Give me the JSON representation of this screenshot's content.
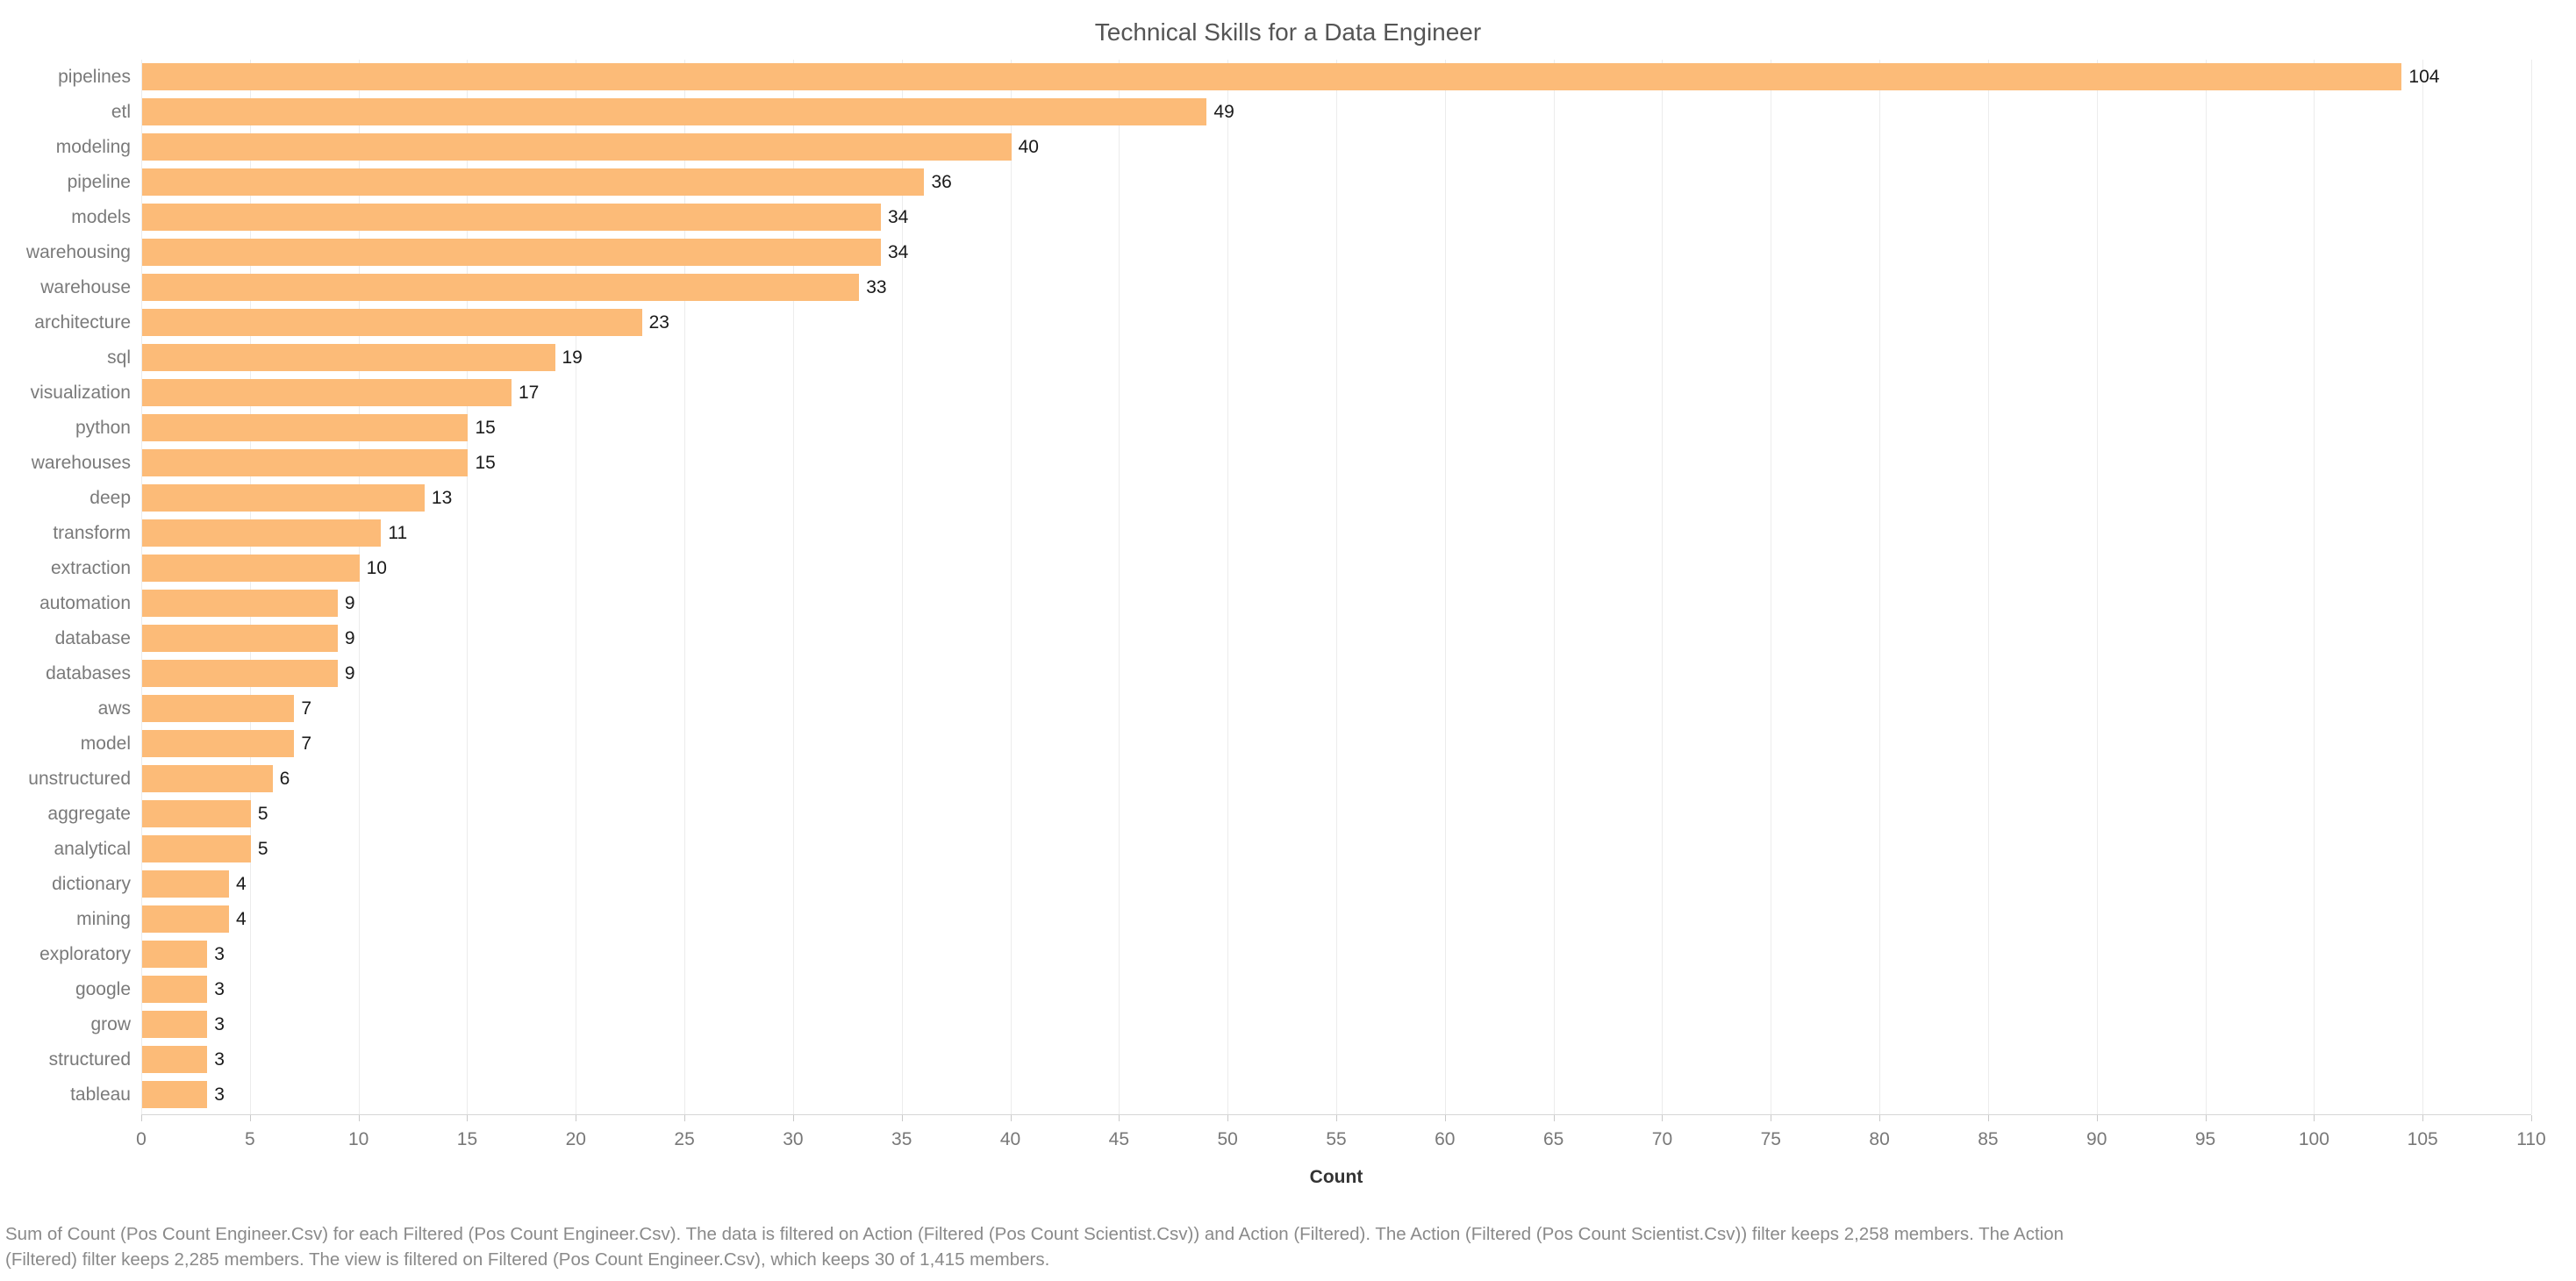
{
  "chart_data": {
    "type": "bar",
    "orientation": "horizontal",
    "title": "Technical Skills for a Data Engineer",
    "xlabel": "Count",
    "xlim": [
      0,
      110
    ],
    "xticks": [
      0,
      5,
      10,
      15,
      20,
      25,
      30,
      35,
      40,
      45,
      50,
      55,
      60,
      65,
      70,
      75,
      80,
      85,
      90,
      95,
      100,
      105,
      110
    ],
    "grid": true,
    "legend": "none",
    "value_labels": true,
    "bar_color": "#FCBB78",
    "categories": [
      "pipelines",
      "etl",
      "modeling",
      "pipeline",
      "models",
      "warehousing",
      "warehouse",
      "architecture",
      "sql",
      "visualization",
      "python",
      "warehouses",
      "deep",
      "transform",
      "extraction",
      "automation",
      "database",
      "databases",
      "aws",
      "model",
      "unstructured",
      "aggregate",
      "analytical",
      "dictionary",
      "mining",
      "exploratory",
      "google",
      "grow",
      "structured",
      "tableau"
    ],
    "values": [
      104,
      49,
      40,
      36,
      34,
      34,
      33,
      23,
      19,
      17,
      15,
      15,
      13,
      11,
      10,
      9,
      9,
      9,
      7,
      7,
      6,
      5,
      5,
      4,
      4,
      3,
      3,
      3,
      3,
      3
    ]
  },
  "caption": {
    "lines": [
      "Sum of Count (Pos Count Engineer.Csv) for each Filtered (Pos Count Engineer.Csv). The data is filtered on Action (Filtered (Pos Count Scientist.Csv)) and Action (Filtered). The Action (Filtered (Pos Count Scientist.Csv)) filter keeps 2,258 members. The Action",
      "(Filtered) filter keeps 2,285 members. The view is filtered on Filtered (Pos Count Engineer.Csv), which keeps 30 of 1,415 members."
    ]
  }
}
